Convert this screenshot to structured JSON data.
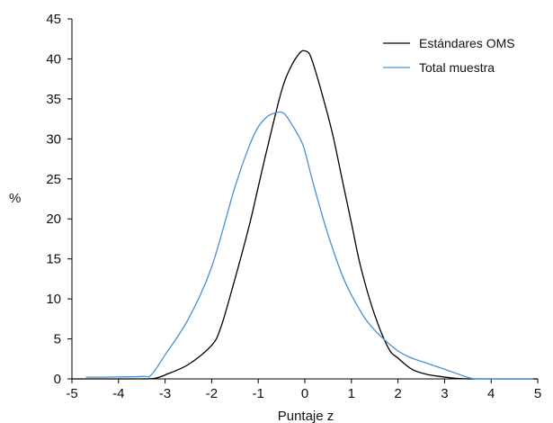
{
  "chart_data": {
    "type": "line",
    "xlabel": "Puntaje z",
    "ylabel": "%",
    "xlim": [
      -5,
      5
    ],
    "ylim": [
      0,
      45
    ],
    "xticks": [
      -5,
      -4,
      -3,
      -2,
      -1,
      0,
      1,
      2,
      3,
      4,
      5
    ],
    "yticks": [
      0,
      5,
      10,
      15,
      20,
      25,
      30,
      35,
      40,
      45
    ],
    "grid": false,
    "legend_position": "top-right",
    "series": [
      {
        "name": "Estándares OMS",
        "color": "#000000",
        "x": [
          -5,
          -3.5,
          -3.2,
          -3.0,
          -2.5,
          -2.0,
          -1.8,
          -1.5,
          -1.2,
          -1.0,
          -0.8,
          -0.5,
          -0.3,
          -0.1,
          0.0,
          0.1,
          0.2,
          0.4,
          0.6,
          0.8,
          1.0,
          1.2,
          1.5,
          1.8,
          2.0,
          2.3,
          2.6,
          2.9,
          3.2,
          3.5,
          4.0,
          5.0
        ],
        "y": [
          0,
          0,
          0.1,
          0.5,
          1.8,
          4.2,
          6.5,
          12.5,
          19.0,
          24.0,
          29.0,
          36.0,
          39.0,
          40.8,
          41.0,
          40.6,
          39.0,
          35.0,
          30.5,
          25.0,
          19.5,
          14.0,
          8.0,
          3.8,
          2.6,
          1.2,
          0.6,
          0.3,
          0.1,
          0.0,
          0.0,
          0.0
        ]
      },
      {
        "name": "Total muestra",
        "color": "#4a90d0",
        "x": [
          -4.7,
          -3.5,
          -3.3,
          -3.0,
          -2.5,
          -2.0,
          -1.5,
          -1.2,
          -1.0,
          -0.8,
          -0.6,
          -0.45,
          -0.3,
          -0.1,
          0.0,
          0.2,
          0.5,
          0.8,
          1.0,
          1.3,
          1.6,
          2.0,
          2.3,
          2.6,
          3.0,
          3.3,
          3.6,
          4.0,
          4.9
        ],
        "y": [
          0.2,
          0.3,
          0.5,
          3.0,
          7.5,
          14.0,
          24.0,
          29.0,
          31.5,
          32.8,
          33.3,
          33.2,
          32.0,
          30.0,
          28.5,
          24.0,
          18.0,
          13.0,
          10.5,
          7.5,
          5.5,
          3.5,
          2.6,
          2.0,
          1.2,
          0.6,
          0.05,
          0.0,
          0.0
        ]
      }
    ]
  }
}
